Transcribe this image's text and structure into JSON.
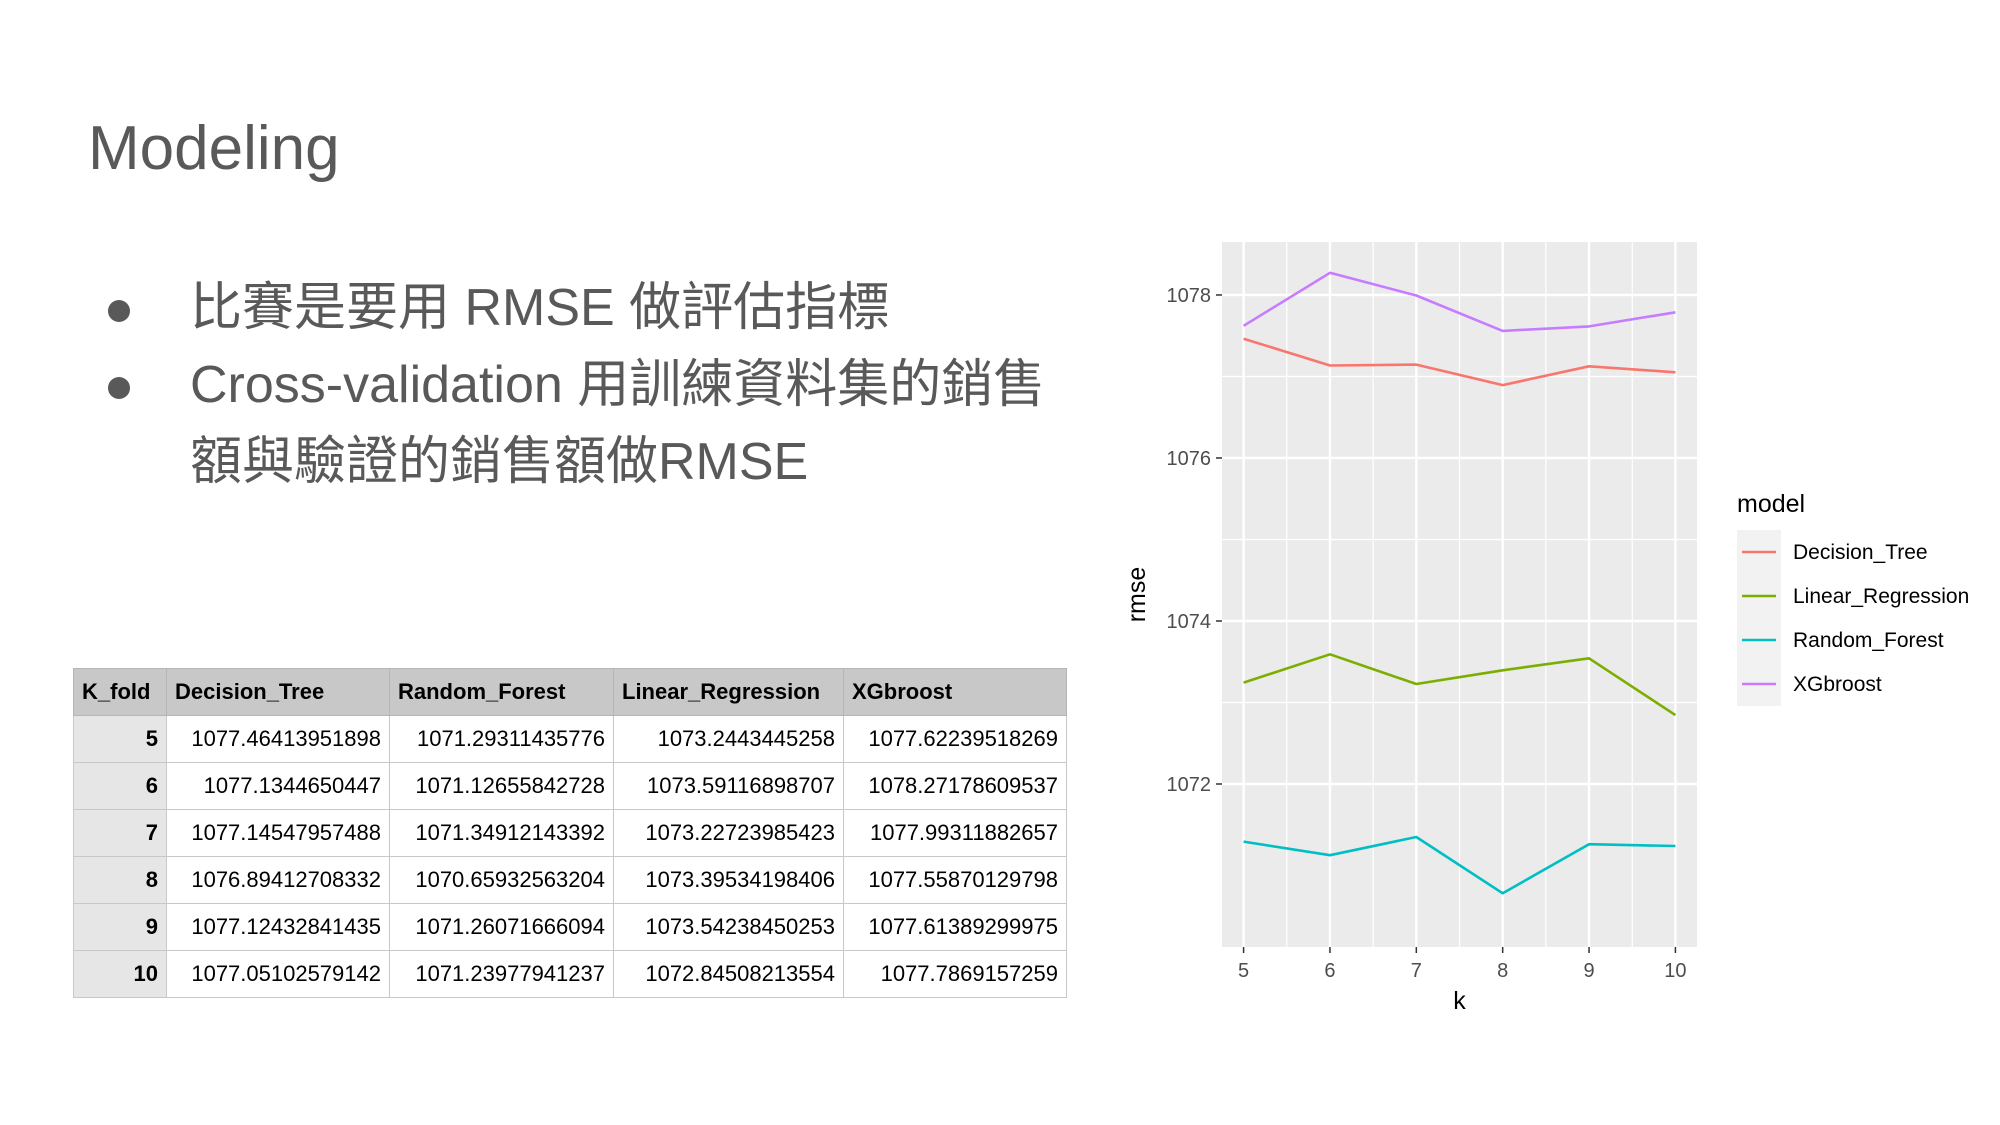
{
  "slide": {
    "title": "Modeling",
    "bullets": [
      "比賽是要用 RMSE 做評估指標",
      "Cross-validation 用訓練資料集的銷售額與驗證的銷售額做RMSE"
    ]
  },
  "table": {
    "headers": [
      "K_fold",
      "Decision_Tree",
      "Random_Forest",
      "Linear_Regression",
      "XGbroost"
    ],
    "rows": [
      [
        "5",
        "1077.46413951898",
        "1071.29311435776",
        "1073.2443445258",
        "1077.62239518269"
      ],
      [
        "6",
        "1077.1344650447",
        "1071.12655842728",
        "1073.59116898707",
        "1078.27178609537"
      ],
      [
        "7",
        "1077.14547957488",
        "1071.34912143392",
        "1073.22723985423",
        "1077.99311882657"
      ],
      [
        "8",
        "1076.89412708332",
        "1070.65932563204",
        "1073.39534198406",
        "1077.55870129798"
      ],
      [
        "9",
        "1077.12432841435",
        "1071.26071666094",
        "1073.54238450253",
        "1077.61389299975"
      ],
      [
        "10",
        "1077.05102579142",
        "1071.23977941237",
        "1072.84508213554",
        "1077.7869157259"
      ]
    ]
  },
  "chart_data": {
    "type": "line",
    "title": "",
    "xlabel": "k",
    "ylabel": "rmse",
    "x": [
      5,
      6,
      7,
      8,
      9,
      10
    ],
    "xlim": [
      4.75,
      10.25
    ],
    "ylim": [
      1070.0,
      1078.65
    ],
    "xticks": [
      5,
      6,
      7,
      8,
      9,
      10
    ],
    "yticks": [
      1072,
      1074,
      1076,
      1078
    ],
    "grid": true,
    "legend_title": "model",
    "legend_position": "right",
    "series": [
      {
        "name": "Decision_Tree",
        "color": "#F8766D",
        "values": [
          1077.46413951898,
          1077.1344650447,
          1077.14547957488,
          1076.89412708332,
          1077.12432841435,
          1077.05102579142
        ]
      },
      {
        "name": "Linear_Regression",
        "color": "#7CAE00",
        "values": [
          1073.2443445258,
          1073.59116898707,
          1073.22723985423,
          1073.39534198406,
          1073.54238450253,
          1072.84508213554
        ]
      },
      {
        "name": "Random_Forest",
        "color": "#00BFC4",
        "values": [
          1071.29311435776,
          1071.12655842728,
          1071.34912143392,
          1070.65932563204,
          1071.26071666094,
          1071.23977941237
        ]
      },
      {
        "name": "XGbroost",
        "color": "#C77CFF",
        "values": [
          1077.62239518269,
          1078.27178609537,
          1077.99311882657,
          1077.55870129798,
          1077.61389299975,
          1077.7869157259
        ]
      }
    ]
  }
}
